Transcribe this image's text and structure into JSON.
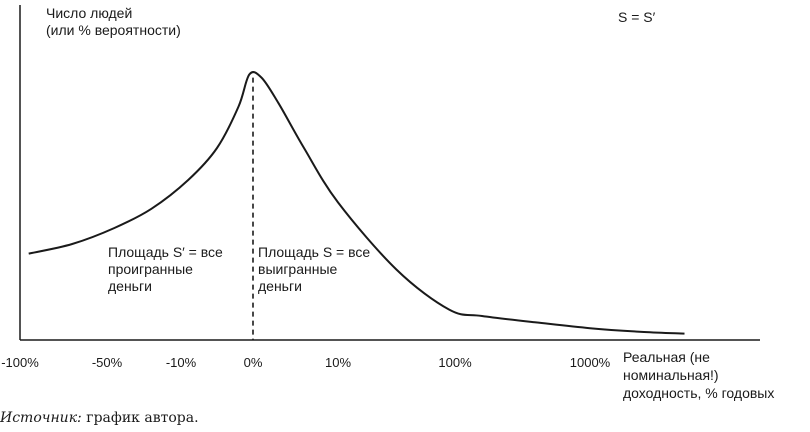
{
  "chart_data": {
    "type": "line",
    "title": "",
    "ylabel_lines": [
      "Число людей",
      "(или % вероятности)"
    ],
    "xlabel_lines": [
      "Реальная (не",
      "номинальная!)",
      "доходность, % годовых"
    ],
    "corner_note": "S = S′",
    "x_ticks": [
      "-100%",
      "-50%",
      "-10%",
      "0%",
      "10%",
      "100%",
      "1000%"
    ],
    "x_tick_positions": [
      0,
      1,
      2,
      3,
      4,
      5,
      6
    ],
    "series": [
      {
        "name": "distribution",
        "x": [
          0.1,
          0.6,
          1.1,
          1.6,
          2.1,
          2.5,
          2.8,
          2.95,
          3.1,
          3.3,
          3.6,
          4.0,
          4.5,
          4.95,
          5.2,
          5.6,
          6.0,
          6.4,
          6.7
        ],
        "values": [
          0.27,
          0.3,
          0.35,
          0.41,
          0.5,
          0.6,
          0.73,
          0.83,
          0.82,
          0.74,
          0.6,
          0.43,
          0.22,
          0.095,
          0.075,
          0.055,
          0.037,
          0.025,
          0.02
        ]
      }
    ],
    "ylim": [
      0,
      1
    ],
    "divider_at": 3,
    "annotations": {
      "left_lines": [
        "Площадь S′ = все",
        "проигранные",
        "деньги"
      ],
      "right_lines": [
        "Площадь S = все",
        "выигранные",
        "деньги"
      ]
    }
  },
  "caption": {
    "source_label": "Источник:",
    "source_text": " график автора."
  }
}
